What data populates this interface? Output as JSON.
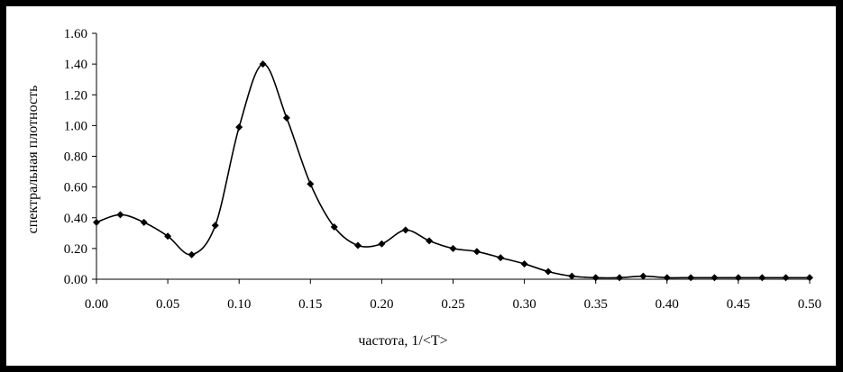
{
  "chart_data": {
    "type": "line",
    "title": "",
    "xlabel": "частота, 1/<T>",
    "ylabel": "спектральная плотность",
    "xlim": [
      0,
      0.5
    ],
    "ylim": [
      0,
      1.6
    ],
    "x_ticks": [
      "0.00",
      "0.05",
      "0.10",
      "0.15",
      "0.20",
      "0.25",
      "0.30",
      "0.35",
      "0.40",
      "0.45",
      "0.50"
    ],
    "y_ticks": [
      "0.00",
      "0.20",
      "0.40",
      "0.60",
      "0.80",
      "1.00",
      "1.20",
      "1.40",
      "1.60"
    ],
    "grid": false,
    "legend": "none",
    "series": [
      {
        "color": "#000000",
        "marker": "diamond",
        "smooth": true,
        "x": [
          0.0,
          0.0167,
          0.0333,
          0.05,
          0.0667,
          0.0833,
          0.1,
          0.1167,
          0.1333,
          0.15,
          0.1667,
          0.1833,
          0.2,
          0.2167,
          0.2333,
          0.25,
          0.2667,
          0.2833,
          0.3,
          0.3167,
          0.3333,
          0.35,
          0.3667,
          0.3833,
          0.4,
          0.4167,
          0.4333,
          0.45,
          0.4667,
          0.4833,
          0.5
        ],
        "values": [
          0.37,
          0.42,
          0.37,
          0.28,
          0.16,
          0.35,
          0.99,
          1.4,
          1.05,
          0.62,
          0.34,
          0.22,
          0.23,
          0.32,
          0.25,
          0.2,
          0.18,
          0.14,
          0.1,
          0.05,
          0.02,
          0.01,
          0.01,
          0.02,
          0.01,
          0.01,
          0.01,
          0.01,
          0.01,
          0.01,
          0.01
        ]
      }
    ]
  }
}
